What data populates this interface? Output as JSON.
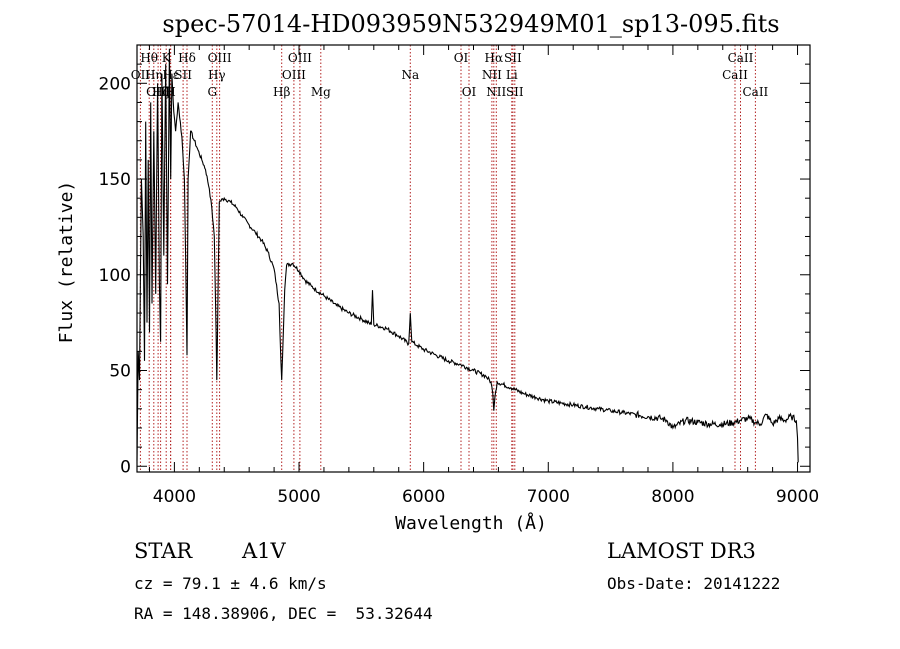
{
  "chart_data": {
    "type": "line",
    "title": "spec-57014-HD093959N532949M01_sp13-095.fits",
    "xlabel": "Wavelength (Å)",
    "ylabel": "Flux (relative)",
    "xlim": [
      3700,
      9100
    ],
    "ylim": [
      -3,
      220
    ],
    "xticks": [
      4000,
      5000,
      6000,
      7000,
      8000,
      9000
    ],
    "yticks": [
      0,
      50,
      100,
      150,
      200
    ],
    "grid": false,
    "series": [
      {
        "name": "flux",
        "x": [
          3700,
          3710,
          3720,
          3735,
          3750,
          3760,
          3770,
          3780,
          3790,
          3800,
          3810,
          3820,
          3835,
          3850,
          3865,
          3880,
          3889,
          3900,
          3915,
          3930,
          3945,
          3960,
          3970,
          3980,
          3995,
          4010,
          4030,
          4060,
          4080,
          4090,
          4101,
          4110,
          4130,
          4160,
          4190,
          4220,
          4250,
          4280,
          4300,
          4320,
          4335,
          4340,
          4345,
          4360,
          4400,
          4450,
          4500,
          4550,
          4600,
          4650,
          4700,
          4750,
          4800,
          4840,
          4855,
          4861,
          4868,
          4885,
          4900,
          4950,
          5000,
          5050,
          5100,
          5200,
          5300,
          5400,
          5500,
          5580,
          5590,
          5600,
          5700,
          5800,
          5880,
          5893,
          5905,
          5950,
          6000,
          6100,
          6200,
          6300,
          6400,
          6500,
          6540,
          6555,
          6563,
          6572,
          6590,
          6700,
          6800,
          6900,
          7000,
          7100,
          7200,
          7300,
          7400,
          7500,
          7600,
          7700,
          7800,
          7900,
          7950,
          8000,
          8100,
          8200,
          8300,
          8400,
          8500,
          8542,
          8600,
          8662,
          8700,
          8750,
          8800,
          8850,
          8900,
          8950,
          8990,
          9000,
          9005
        ],
        "values": [
          3,
          60,
          45,
          150,
          120,
          55,
          180,
          75,
          160,
          70,
          190,
          85,
          175,
          90,
          200,
          95,
          65,
          205,
          110,
          210,
          95,
          218,
          150,
          205,
          185,
          175,
          190,
          172,
          150,
          110,
          58,
          150,
          175,
          170,
          165,
          160,
          155,
          145,
          135,
          120,
          70,
          45,
          65,
          138,
          140,
          138,
          135,
          130,
          126,
          122,
          118,
          112,
          103,
          85,
          55,
          45,
          58,
          92,
          105,
          106,
          102,
          97,
          94,
          89,
          84,
          80,
          77,
          74,
          92,
          74,
          72,
          68,
          64,
          80,
          65,
          63,
          61,
          58,
          55,
          53,
          50,
          47,
          44,
          38,
          29,
          36,
          44,
          41,
          38,
          36,
          34,
          33,
          32,
          31,
          30,
          29,
          28,
          27,
          26,
          25,
          24,
          20,
          24,
          23,
          22,
          22,
          23,
          24,
          25,
          23,
          22,
          27,
          22,
          25,
          24,
          26,
          24,
          15,
          2
        ]
      }
    ],
    "line_markers": [
      {
        "label": "Hθ",
        "x": 3798,
        "row": 1
      },
      {
        "label": "OII",
        "x": 3727,
        "row": 2
      },
      {
        "label": "Hη",
        "x": 3835,
        "row": 2
      },
      {
        "label": "OIII",
        "x": 3869,
        "row": 3
      },
      {
        "label": "Hζ",
        "x": 3889,
        "row": 3
      },
      {
        "label": "K",
        "x": 3934,
        "row": 1
      },
      {
        "label": "Hε",
        "x": 3970,
        "row": 2
      },
      {
        "label": "H",
        "x": 3969,
        "row": 3
      },
      {
        "label": "Hδ",
        "x": 4101,
        "row": 1
      },
      {
        "label": "SII",
        "x": 4070,
        "row": 2
      },
      {
        "label": "OIII",
        "x": 4363,
        "row": 1
      },
      {
        "label": "Hγ",
        "x": 4340,
        "row": 2
      },
      {
        "label": "G",
        "x": 4304,
        "row": 3
      },
      {
        "label": "Hβ",
        "x": 4861,
        "row": 3
      },
      {
        "label": "OIII",
        "x": 5007,
        "row": 1
      },
      {
        "label": "OIII",
        "x": 4959,
        "row": 2
      },
      {
        "label": "Mg",
        "x": 5175,
        "row": 3
      },
      {
        "label": "Na",
        "x": 5893,
        "row": 2
      },
      {
        "label": "OI",
        "x": 6300,
        "row": 1
      },
      {
        "label": "OI",
        "x": 6364,
        "row": 3
      },
      {
        "label": "Hα",
        "x": 6563,
        "row": 1
      },
      {
        "label": "SII",
        "x": 6716,
        "row": 1
      },
      {
        "label": "NII",
        "x": 6548,
        "row": 2
      },
      {
        "label": "Li",
        "x": 6707,
        "row": 2
      },
      {
        "label": "NII",
        "x": 6583,
        "row": 3
      },
      {
        "label": "SII",
        "x": 6731,
        "row": 3
      },
      {
        "label": "CaII",
        "x": 8542,
        "row": 1
      },
      {
        "label": "CaII",
        "x": 8498,
        "row": 2
      },
      {
        "label": "CaII",
        "x": 8662,
        "row": 3
      }
    ]
  },
  "info": {
    "object_type": "STAR",
    "subclass": "A1V",
    "survey": "LAMOST DR3",
    "cz": "cz = 79.1 ± 4.6 km/s",
    "obs_date": "Obs-Date: 20141222",
    "coords": "RA = 148.38906, DEC =  53.32644"
  },
  "colors": {
    "axes": "#000000",
    "spectrum": "#000000",
    "line_marker": "#b22222"
  }
}
